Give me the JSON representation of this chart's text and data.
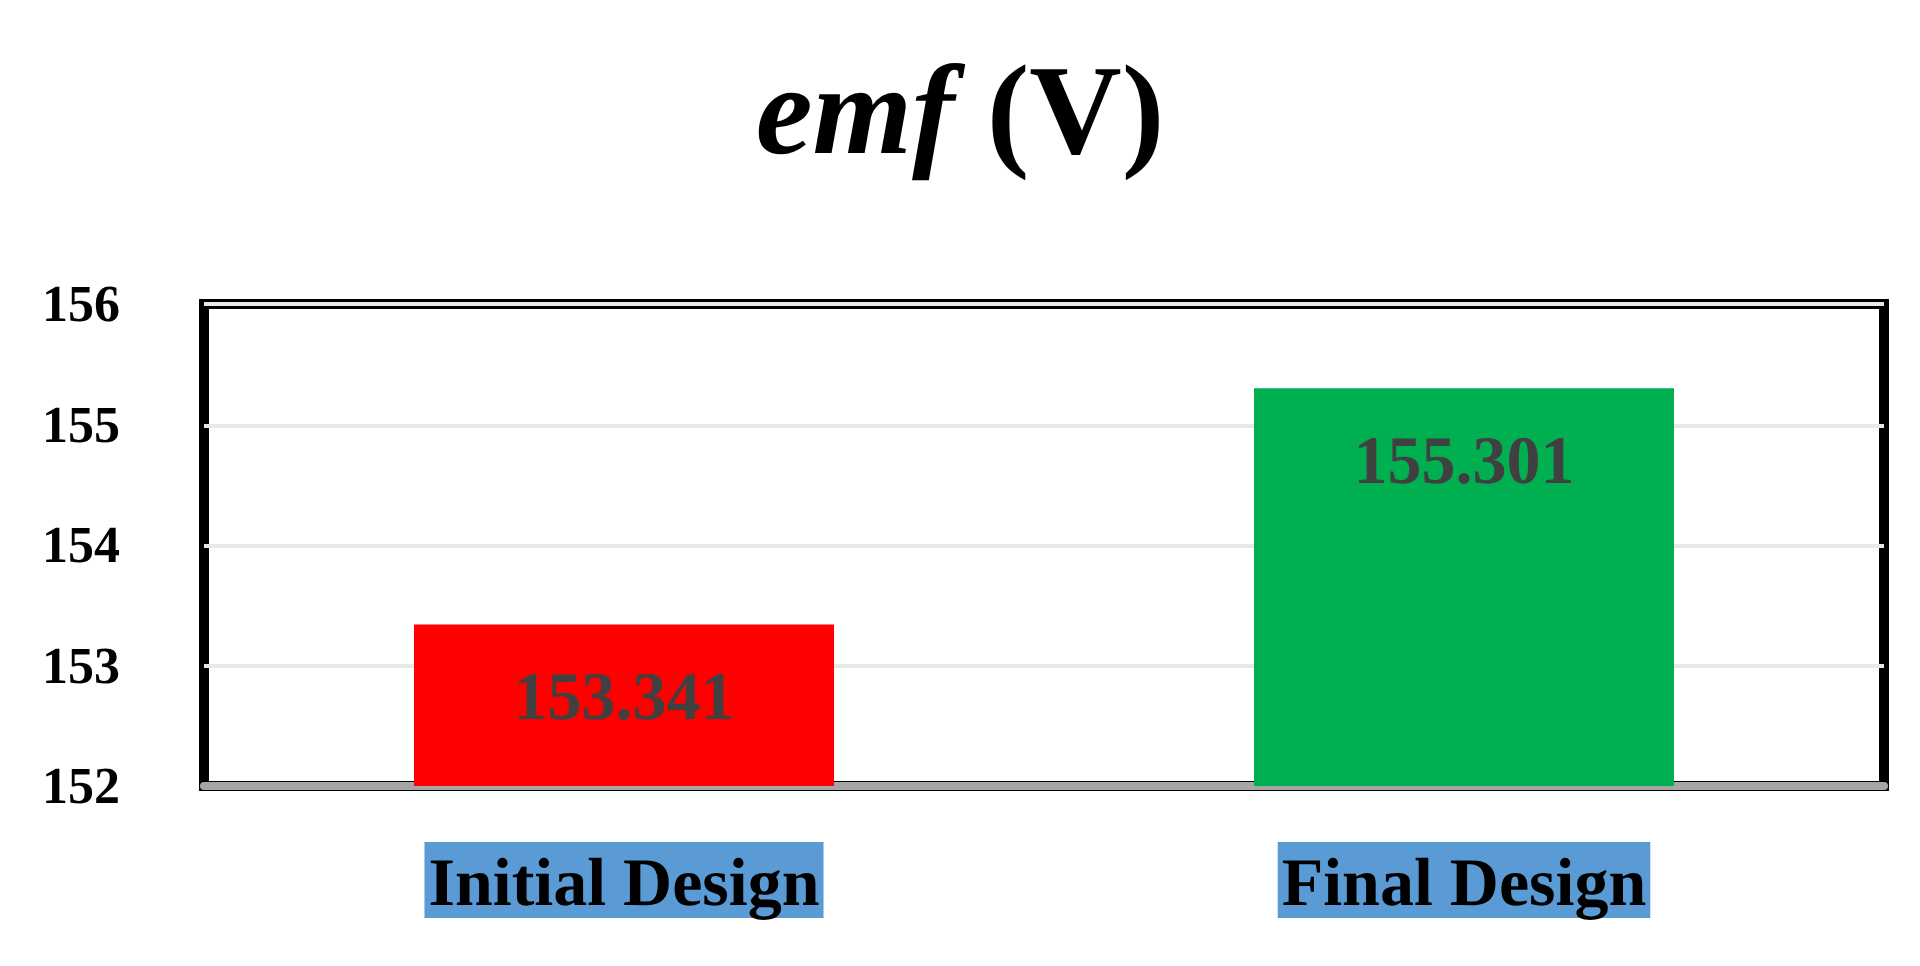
{
  "chart_data": {
    "type": "bar",
    "title": "emf (V)",
    "categories": [
      "Initial Design",
      "Final Design"
    ],
    "values": [
      153.341,
      155.301
    ],
    "colors": [
      "#ff0000",
      "#00b050"
    ],
    "ylim": [
      152,
      156
    ],
    "yticks": [
      152,
      153,
      154,
      155,
      156
    ],
    "grid": "y",
    "data_labels": true
  }
}
